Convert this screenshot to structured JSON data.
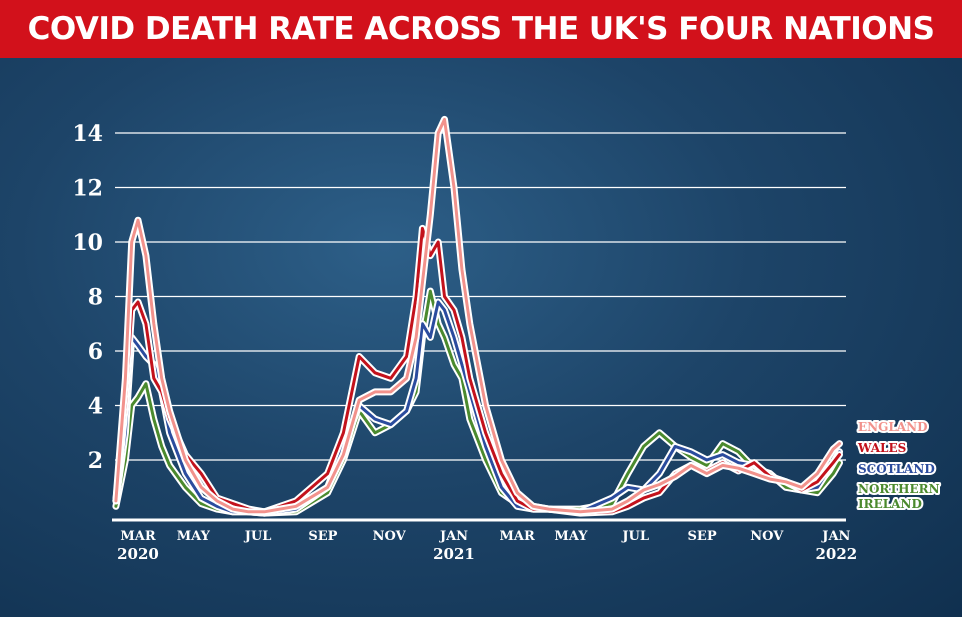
{
  "chart_data": {
    "type": "line",
    "title": "COVID DEATH RATE ACROSS THE UK'S FOUR NATIONS",
    "xlabel": "",
    "ylabel": "",
    "ylim": [
      0,
      14
    ],
    "yticks": [
      "2",
      "4",
      "6",
      "8",
      "10",
      "12",
      "14"
    ],
    "grid": true,
    "legend_placement": "right",
    "x_unit": "months since March 2020",
    "xticks": [
      {
        "label": "MAR",
        "year": "2020",
        "m": 0
      },
      {
        "label": "MAY",
        "year": "",
        "m": 1.75
      },
      {
        "label": "JUL",
        "year": "",
        "m": 3.8
      },
      {
        "label": "SEP",
        "year": "",
        "m": 5.85
      },
      {
        "label": "NOV",
        "year": "",
        "m": 7.95
      },
      {
        "label": "JAN",
        "year": "2021",
        "m": 10
      },
      {
        "label": "MAR",
        "year": "",
        "m": 12
      },
      {
        "label": "MAY",
        "year": "",
        "m": 13.7
      },
      {
        "label": "JUL",
        "year": "",
        "m": 15.75
      },
      {
        "label": "SEP",
        "year": "",
        "m": 17.85
      },
      {
        "label": "NOV",
        "year": "",
        "m": 19.9
      },
      {
        "label": "JAN",
        "year": "2022",
        "m": 22.1
      }
    ],
    "x": [
      -0.7,
      -0.4,
      -0.2,
      0,
      0.25,
      0.5,
      0.75,
      1,
      1.5,
      2,
      2.5,
      3,
      3.5,
      4,
      5,
      6,
      6.5,
      7,
      7.5,
      8,
      8.5,
      8.8,
      9,
      9.25,
      9.5,
      9.7,
      10,
      10.25,
      10.5,
      11,
      11.5,
      12,
      12.5,
      13,
      14,
      15,
      15.5,
      16,
      16.5,
      17,
      17.5,
      18,
      18.5,
      19,
      19.5,
      20,
      20.5,
      21,
      21.5,
      22,
      22.2
    ],
    "series": [
      {
        "name": "ENGLAND",
        "color": "#f2928c",
        "values": [
          0.5,
          5,
          10,
          10.8,
          9.5,
          7,
          5,
          3.8,
          2,
          1,
          0.5,
          0.2,
          0.1,
          0.1,
          0.3,
          1,
          2.2,
          4.2,
          4.5,
          4.5,
          5,
          6.5,
          8.5,
          11,
          14,
          14.5,
          12,
          9,
          7,
          4,
          2,
          0.8,
          0.3,
          0.2,
          0.1,
          0.2,
          0.5,
          0.9,
          1.1,
          1.4,
          1.8,
          1.5,
          1.8,
          1.7,
          1.5,
          1.3,
          1.2,
          1.0,
          1.5,
          2.4,
          2.6
        ]
      },
      {
        "name": "WALES",
        "color": "#c3121c",
        "values": [
          0.5,
          4,
          7.5,
          7.8,
          7,
          5,
          4.5,
          3.5,
          2.2,
          1.5,
          0.6,
          0.4,
          0.2,
          0.1,
          0.5,
          1.5,
          3,
          5.8,
          5.2,
          5,
          5.8,
          8,
          10.5,
          9.5,
          10,
          8,
          7.5,
          6.5,
          5,
          3,
          1.5,
          0.5,
          0.2,
          0.2,
          0.05,
          0.1,
          0.3,
          0.6,
          0.8,
          1.5,
          1.8,
          1.6,
          1.9,
          1.6,
          1.9,
          1.4,
          1.2,
          0.9,
          1.2,
          1.9,
          2.2
        ]
      },
      {
        "name": "SCOTLAND",
        "color": "#2b4c9e",
        "values": [
          0.5,
          3,
          6.5,
          6.2,
          5.8,
          5.5,
          4.5,
          3,
          1.5,
          0.6,
          0.3,
          0.1,
          0.1,
          0.05,
          0.2,
          1,
          2.5,
          4,
          3.5,
          3.3,
          3.8,
          5,
          7,
          6.5,
          7.8,
          7.5,
          6.5,
          5.5,
          4.5,
          2.5,
          1,
          0.3,
          0.2,
          0.2,
          0.1,
          0.6,
          1.0,
          0.9,
          1.5,
          2.5,
          2.3,
          2.0,
          2.2,
          1.9,
          1.8,
          1.4,
          1.2,
          0.9,
          1.0,
          1.9,
          2.3
        ]
      },
      {
        "name": "NORTHERN IRELAND",
        "label_lines": [
          "NORTHERN",
          "IRELAND"
        ],
        "color": "#4b8a2e",
        "values": [
          0.3,
          2,
          4,
          4.3,
          4.8,
          3.5,
          2.5,
          1.8,
          1,
          0.4,
          0.2,
          0.1,
          0.1,
          0.05,
          0.1,
          0.8,
          2,
          3.8,
          3,
          3.3,
          3.8,
          4.5,
          6.5,
          8.2,
          7,
          6.5,
          5.5,
          5,
          3.5,
          2,
          0.8,
          0.4,
          0.3,
          0.2,
          0.2,
          0.4,
          1.5,
          2.5,
          3,
          2.5,
          2.1,
          1.8,
          2.6,
          2.3,
          1.7,
          1.5,
          1.0,
          0.9,
          0.8,
          1.5,
          1.9
        ]
      }
    ]
  }
}
